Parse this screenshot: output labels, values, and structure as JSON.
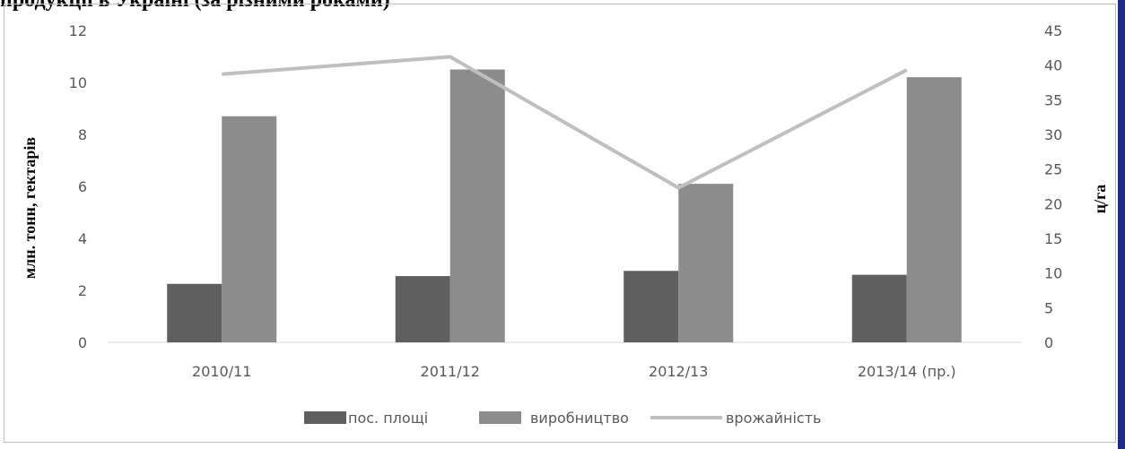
{
  "header": {
    "title_fragment": "продукції в Україні (за різними роками)"
  },
  "chart_data": {
    "type": "bar",
    "categories": [
      "2010/11",
      "2011/12",
      "2012/13",
      "2013/14 (пр.)"
    ],
    "series": [
      {
        "name": "пос. площі",
        "type": "bar",
        "axis": "left",
        "color": "#5f5f5f",
        "values": [
          2.25,
          2.55,
          2.75,
          2.6
        ]
      },
      {
        "name": "виробництво",
        "type": "bar",
        "axis": "left",
        "color": "#8c8c8c",
        "values": [
          8.7,
          10.5,
          6.1,
          10.2
        ]
      },
      {
        "name": "врожайність",
        "type": "line",
        "axis": "right",
        "color": "#bfbfbf",
        "values": [
          38.7,
          41.2,
          22.3,
          39.3
        ]
      }
    ],
    "ylabel": "млн. тонн, гектарів",
    "y2label": "ц/га",
    "ylim": [
      0,
      12
    ],
    "y2lim": [
      0,
      45
    ],
    "yticks": [
      "0",
      "2",
      "4",
      "6",
      "8",
      "10",
      "12"
    ],
    "y2ticks": [
      "0",
      "5",
      "10",
      "15",
      "20",
      "25",
      "30",
      "35",
      "40",
      "45"
    ],
    "grid": false,
    "legend_position": "bottom"
  }
}
